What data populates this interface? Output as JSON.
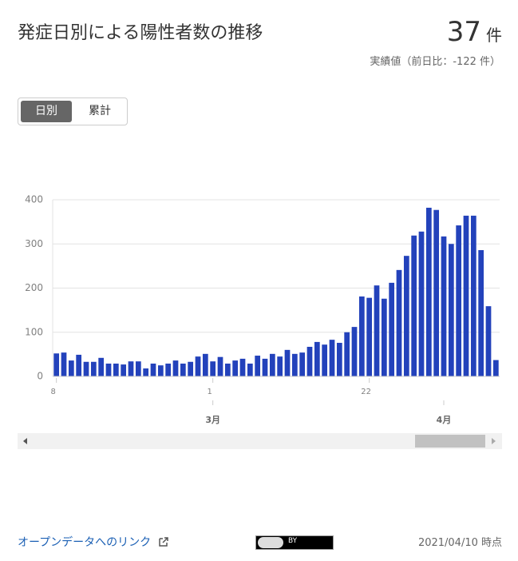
{
  "header": {
    "title": "発症日別による陽性者数の推移",
    "value": "37",
    "unit": "件",
    "note": "実績値（前日比：-122 件）"
  },
  "toggle": [
    "日別",
    "累計"
  ],
  "chart_data": {
    "type": "bar",
    "color": "#2342bb",
    "categories": [
      "8",
      null,
      null,
      null,
      null,
      null,
      null,
      null,
      null,
      null,
      null,
      null,
      null,
      null,
      null,
      null,
      null,
      null,
      null,
      null,
      null,
      "1",
      null,
      null,
      null,
      null,
      null,
      null,
      null,
      null,
      null,
      null,
      null,
      null,
      null,
      null,
      null,
      null,
      null,
      null,
      null,
      null,
      "22",
      null,
      null,
      null,
      null,
      null,
      null,
      null,
      null,
      null,
      null,
      null,
      null,
      null,
      null,
      null,
      null,
      null
    ],
    "month_labels": [
      null,
      null,
      null,
      null,
      null,
      null,
      null,
      null,
      null,
      null,
      null,
      null,
      null,
      null,
      null,
      null,
      null,
      null,
      null,
      null,
      null,
      "3月",
      null,
      null,
      null,
      null,
      null,
      null,
      null,
      null,
      null,
      null,
      null,
      null,
      null,
      null,
      null,
      null,
      null,
      null,
      null,
      null,
      null,
      null,
      null,
      null,
      null,
      null,
      null,
      null,
      null,
      null,
      "4月",
      null,
      null,
      null,
      null,
      null,
      null,
      null
    ],
    "values": [
      52,
      54,
      36,
      49,
      33,
      33,
      42,
      29,
      29,
      27,
      34,
      34,
      18,
      29,
      25,
      29,
      36,
      29,
      33,
      45,
      51,
      34,
      44,
      29,
      36,
      40,
      29,
      47,
      40,
      51,
      45,
      60,
      51,
      54,
      67,
      78,
      72,
      83,
      76,
      100,
      112,
      181,
      178,
      206,
      176,
      212,
      241,
      273,
      319,
      328,
      382,
      377,
      317,
      300,
      342,
      364,
      364,
      286,
      159,
      37
    ],
    "ylim": [
      0,
      400
    ],
    "yticks": [
      0,
      100,
      200,
      300,
      400
    ],
    "grid": true
  },
  "footer": {
    "link": "オープンデータへのリンク",
    "license": "BY",
    "timestamp": "2021/04/10 時点"
  }
}
